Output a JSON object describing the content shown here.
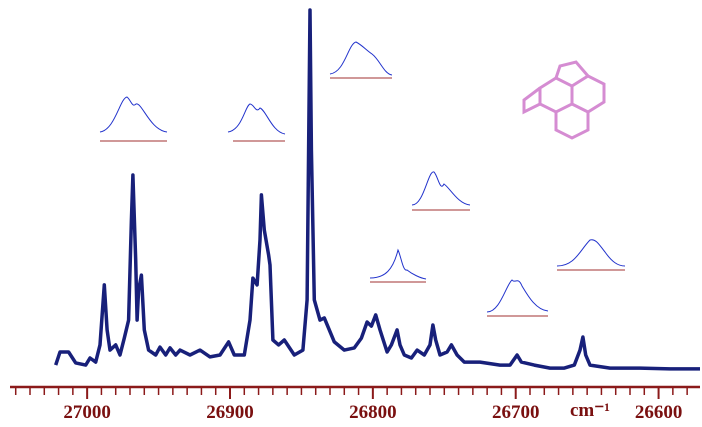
{
  "chart_data": {
    "type": "line",
    "x_label": "cm⁻¹",
    "x": [
      27022,
      27019,
      27013,
      27008,
      27001,
      26998,
      26994,
      26991,
      26988,
      26986,
      26984,
      26980,
      26977,
      26974,
      26971,
      26969,
      26968,
      26966,
      26965,
      26964,
      26962,
      26960,
      26957,
      26952,
      26949,
      26945,
      26942,
      26938,
      26935,
      26928,
      26921,
      26914,
      26907,
      26901,
      26897,
      26890,
      26886,
      26884,
      26881,
      26879,
      26878,
      26876,
      26873,
      26872,
      26870,
      26866,
      26862,
      26855,
      26849,
      26846,
      26845,
      26844,
      26843,
      26841,
      26837,
      26834,
      26827,
      26820,
      26813,
      26808,
      26804,
      26801,
      26798,
      26795,
      26790,
      26787,
      26783,
      26781,
      26778,
      26773,
      26769,
      26764,
      26760,
      26758,
      26756,
      26753,
      26748,
      26745,
      26741,
      26736,
      26725,
      26711,
      26704,
      26699,
      26696,
      26687,
      26676,
      26666,
      26659,
      26655,
      26653,
      26651,
      26648,
      26634,
      26613,
      26592,
      26571
    ],
    "series": [
      {
        "color": "#18207a",
        "values": [
          5.3,
          8.8,
          8.8,
          5.9,
          5.3,
          7.2,
          6.1,
          10.7,
          26.7,
          14.7,
          9.3,
          10.7,
          8,
          12.5,
          17.3,
          44,
          56,
          33.3,
          17.3,
          25.3,
          29.3,
          14.7,
          9.3,
          8,
          10.1,
          8,
          9.9,
          8,
          9.3,
          8,
          9.3,
          7.5,
          8,
          11.5,
          8,
          8,
          17.3,
          28.5,
          26.7,
          38.7,
          50.7,
          41.3,
          34.7,
          32,
          12,
          10.7,
          12,
          8,
          9.3,
          22.7,
          62.7,
          100,
          62.7,
          22.7,
          17.3,
          17.9,
          11.5,
          9.3,
          9.9,
          12.5,
          16.8,
          15.7,
          18.7,
          14.7,
          8.8,
          10.7,
          14.7,
          10.7,
          8,
          7.2,
          9.3,
          8,
          10.7,
          16,
          12,
          8,
          8.8,
          10.7,
          8,
          6.1,
          6.1,
          5.3,
          5.3,
          8,
          6.1,
          5.3,
          4.5,
          4.5,
          5.3,
          9.3,
          12.8,
          8,
          5.3,
          4.5,
          4.5,
          4.3,
          4.3
        ]
      }
    ],
    "xlim": [
      27054,
      26571
    ],
    "ylim": [
      0,
      100
    ],
    "xticks": [
      27000,
      26900,
      26800,
      26700,
      26600
    ],
    "xminor_ticks": [
      27050,
      27040,
      27030,
      27020,
      27010,
      26990,
      26980,
      26970,
      26960,
      26950,
      26940,
      26930,
      26920,
      26910,
      26890,
      26880,
      26870,
      26860,
      26850,
      26840,
      26830,
      26820,
      26810,
      26790,
      26780,
      26770,
      26760,
      26750,
      26740,
      26730,
      26720,
      26710,
      26690,
      26680,
      26670,
      26660,
      26650,
      26640,
      26630,
      26620,
      26610,
      26590,
      26580
    ],
    "axis_color": "#8b1a1a"
  }
}
